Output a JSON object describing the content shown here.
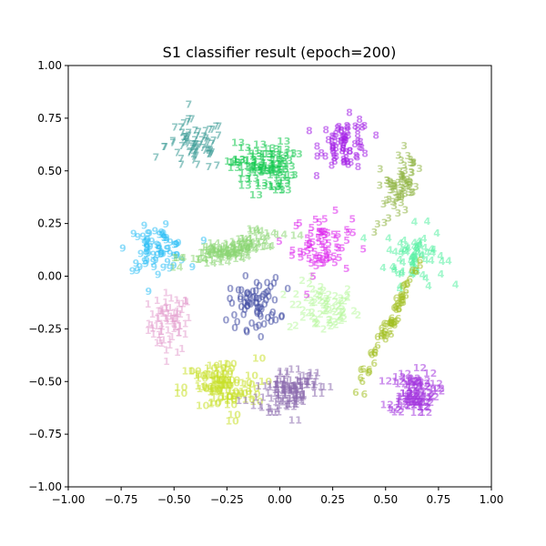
{
  "chart_data": {
    "type": "scatter",
    "title": "S1 classifier result (epoch=200)",
    "xlabel": "",
    "ylabel": "",
    "xlim": [
      -1.0,
      1.0
    ],
    "ylim": [
      -1.0,
      1.0
    ],
    "grid": false,
    "x_ticks": [
      "−1.00",
      "−0.75",
      "−0.50",
      "−0.25",
      "0.00",
      "0.25",
      "0.50",
      "0.75",
      "1.00"
    ],
    "y_ticks": [
      "−1.00",
      "−0.75",
      "−0.50",
      "−0.25",
      "0.00",
      "0.25",
      "0.50",
      "0.75",
      "1.00"
    ],
    "x_tick_values": [
      -1.0,
      -0.75,
      -0.5,
      -0.25,
      0.0,
      0.25,
      0.5,
      0.75,
      1.0
    ],
    "y_tick_values": [
      -1.0,
      -0.75,
      -0.5,
      -0.25,
      0.0,
      0.25,
      0.5,
      0.75,
      1.0
    ],
    "clusters": [
      {
        "label": "1",
        "color": "#e39fce",
        "center": [
          -0.52,
          -0.22
        ],
        "spread": [
          0.05,
          0.07
        ],
        "rotation": 0
      },
      {
        "label": "2",
        "color": "#b9f7a0",
        "center": [
          0.2,
          -0.15
        ],
        "spread": [
          0.08,
          0.06
        ],
        "rotation": 0
      },
      {
        "label": "4",
        "color": "#56f0a2",
        "center": [
          0.64,
          0.1
        ],
        "spread": [
          0.07,
          0.07
        ],
        "rotation": 0
      },
      {
        "label": "5",
        "color": "#dc20ed",
        "center": [
          0.2,
          0.15
        ],
        "spread": [
          0.07,
          0.07
        ],
        "rotation": 0
      },
      {
        "label": "6",
        "color": "#a3c023",
        "center": [
          0.52,
          -0.22
        ],
        "spread": [
          0.015,
          0.14
        ],
        "rotation": -25
      },
      {
        "label": "7",
        "color": "#3a9a95",
        "center": [
          -0.4,
          0.62
        ],
        "spread": [
          0.07,
          0.06
        ],
        "rotation": 0
      },
      {
        "label": "8",
        "color": "#a31ee6",
        "center": [
          0.31,
          0.63
        ],
        "spread": [
          0.06,
          0.06
        ],
        "rotation": 0
      },
      {
        "label": "9",
        "color": "#2ec0f5",
        "center": [
          -0.58,
          0.13
        ],
        "spread": [
          0.07,
          0.05
        ],
        "rotation": 0
      },
      {
        "label": "10",
        "color": "#c8e02a",
        "center": [
          -0.28,
          -0.53
        ],
        "spread": [
          0.09,
          0.07
        ],
        "rotation": 0
      },
      {
        "label": "11",
        "color": "#8a6aad",
        "center": [
          0.05,
          -0.54
        ],
        "spread": [
          0.08,
          0.05
        ],
        "rotation": 15
      },
      {
        "label": "12",
        "color": "#a438de",
        "center": [
          0.63,
          -0.55
        ],
        "spread": [
          0.05,
          0.05
        ],
        "rotation": 0
      },
      {
        "label": "13",
        "color": "#10c84c",
        "center": [
          -0.08,
          0.52
        ],
        "spread": [
          0.07,
          0.06
        ],
        "rotation": 0
      },
      {
        "label": "14",
        "color": "#8ad672",
        "center": [
          -0.21,
          0.13
        ],
        "spread": [
          0.13,
          0.03
        ],
        "rotation": 18
      },
      {
        "label": "0",
        "color": "#404ba3",
        "center": [
          -0.12,
          -0.13
        ],
        "spread": [
          0.06,
          0.06
        ],
        "rotation": 0
      },
      {
        "label": "3",
        "color": "#90b443",
        "center": [
          0.57,
          0.43
        ],
        "spread": [
          0.04,
          0.08
        ],
        "rotation": -25
      }
    ]
  }
}
